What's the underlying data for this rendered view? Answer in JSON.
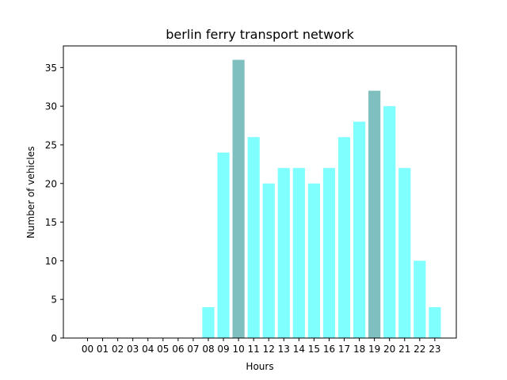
{
  "chart_data": {
    "type": "bar",
    "title": "berlin ferry transport network",
    "xlabel": "Hours",
    "ylabel": "Number of vehicles",
    "categories": [
      "00",
      "01",
      "02",
      "03",
      "04",
      "05",
      "06",
      "07",
      "08",
      "09",
      "10",
      "11",
      "12",
      "13",
      "14",
      "15",
      "16",
      "17",
      "18",
      "19",
      "20",
      "21",
      "22",
      "23"
    ],
    "values": [
      0,
      0,
      0,
      0,
      0,
      0,
      0,
      0,
      4,
      24,
      36,
      26,
      20,
      22,
      22,
      20,
      22,
      26,
      28,
      32,
      30,
      22,
      10,
      4
    ],
    "highlighted": [
      "10",
      "19"
    ],
    "ylim": [
      0,
      37.8
    ],
    "yticks": [
      0,
      5,
      10,
      15,
      20,
      25,
      30,
      35
    ],
    "grid": false,
    "colors": {
      "bar": "#80ffff",
      "highlight": "#80bfbf",
      "axis": "#000000"
    }
  }
}
